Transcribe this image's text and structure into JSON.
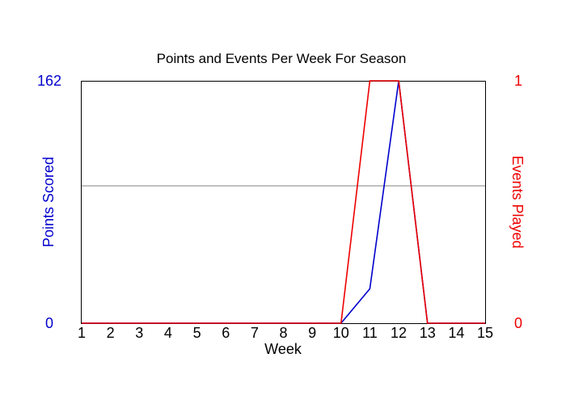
{
  "chart_data": {
    "type": "line",
    "title": "Points and Events Per Week For Season",
    "xlabel": "Week",
    "ylabel_left": "Points Scored",
    "ylabel_right": "Events Played",
    "x": [
      1,
      2,
      3,
      4,
      5,
      6,
      7,
      8,
      9,
      10,
      11,
      12,
      13,
      14,
      15
    ],
    "xlim": [
      1,
      15
    ],
    "ylim_left": [
      0,
      162
    ],
    "ylim_right": [
      0,
      1
    ],
    "left_ticks": [
      "0",
      "162"
    ],
    "right_ticks": [
      "0",
      "1"
    ],
    "series": [
      {
        "axis": "left",
        "color": "#0000cc",
        "values": [
          0,
          0,
          0,
          0,
          0,
          0,
          0,
          0,
          0,
          0,
          23,
          162,
          0,
          0,
          0
        ]
      },
      {
        "axis": "right",
        "color": "#ee0000",
        "values": [
          0,
          0,
          0,
          0,
          0,
          0,
          0,
          0,
          0,
          0,
          1,
          1,
          0,
          0,
          0
        ]
      }
    ],
    "grid": "single horizontal midline",
    "colors": {
      "left_axis": "#0000cc",
      "right_axis": "#ee0000",
      "midline": "#808080"
    }
  }
}
